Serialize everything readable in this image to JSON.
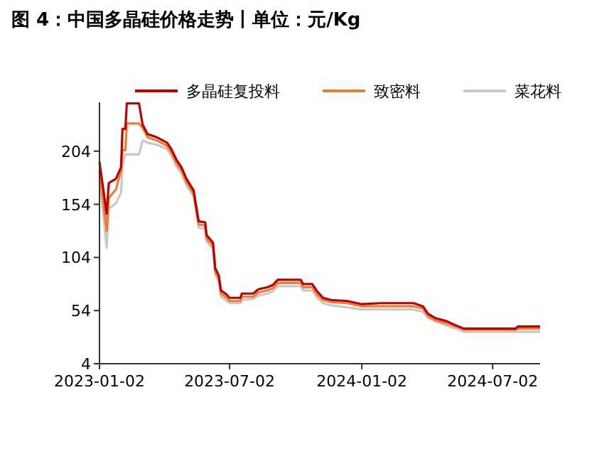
{
  "chart_data": {
    "type": "line",
    "title": "图 4：中国多晶硅价格走势丨单位：元/Kg",
    "x": [
      "2023-01-02",
      "2023-01-12",
      "2023-01-15",
      "2023-01-25",
      "2023-02-01",
      "2023-02-03",
      "2023-02-07",
      "2023-02-09",
      "2023-02-26",
      "2023-03-03",
      "2023-03-10",
      "2023-03-23",
      "2023-04-06",
      "2023-04-12",
      "2023-04-19",
      "2023-04-26",
      "2023-05-03",
      "2023-05-13",
      "2023-05-20",
      "2023-05-29",
      "2023-05-31",
      "2023-06-09",
      "2023-06-12",
      "2023-06-17",
      "2023-06-20",
      "2023-06-28",
      "2023-07-02",
      "2023-07-17",
      "2023-07-19",
      "2023-08-04",
      "2023-08-11",
      "2023-08-24",
      "2023-08-31",
      "2023-09-07",
      "2023-10-09",
      "2023-10-12",
      "2023-10-25",
      "2023-11-01",
      "2023-11-09",
      "2023-11-20",
      "2023-12-13",
      "2024-01-02",
      "2024-01-28",
      "2024-03-14",
      "2024-03-27",
      "2024-04-03",
      "2024-04-13",
      "2024-04-29",
      "2024-05-12",
      "2024-05-23",
      "2024-08-03",
      "2024-08-06",
      "2024-09-06"
    ],
    "series": [
      {
        "name": "多晶硅复投料",
        "color": "#c00000",
        "values": [
          194,
          145,
          174,
          178,
          189,
          225,
          225,
          249,
          249,
          229,
          220,
          217,
          212,
          206,
          196,
          189,
          178,
          167,
          138,
          137,
          125,
          118,
          94,
          87,
          73,
          69,
          66,
          66,
          70,
          70,
          74,
          76,
          78,
          83,
          83,
          79,
          79,
          72,
          66,
          64,
          63,
          60,
          61,
          61,
          58,
          51,
          47,
          44,
          40,
          37,
          37,
          39,
          39
        ]
      },
      {
        "name": "致密料",
        "color": "#ed7d31",
        "values": [
          186,
          129,
          160,
          168,
          186,
          205,
          205,
          230,
          230,
          226,
          217,
          214,
          209,
          203,
          193,
          186,
          175,
          164,
          135,
          134,
          122,
          115,
          91,
          84,
          70,
          66,
          63,
          63,
          67,
          67,
          71,
          73,
          75,
          80,
          80,
          76,
          76,
          69,
          64,
          62,
          61,
          58,
          58,
          58,
          56,
          49,
          45,
          42,
          39,
          36,
          36,
          37,
          37
        ]
      },
      {
        "name": "菜花料",
        "color": "#c8c8c8",
        "values": [
          180,
          113,
          150,
          155,
          165,
          190,
          201,
          201,
          201,
          214,
          212,
          210,
          206,
          200,
          190,
          183,
          172,
          161,
          132,
          131,
          119,
          112,
          88,
          81,
          67,
          63,
          61,
          61,
          64,
          65,
          68,
          70,
          72,
          77,
          77,
          73,
          73,
          66,
          61,
          59,
          57,
          55,
          55,
          55,
          53,
          47,
          44,
          40,
          37,
          34,
          34,
          34,
          34
        ]
      }
    ],
    "xlim": [
      "2023-01-02",
      "2024-09-06"
    ],
    "xticks": [
      {
        "value": "2023-01-02",
        "label": "2023-01-02"
      },
      {
        "value": "2023-07-02",
        "label": "2023-07-02"
      },
      {
        "value": "2024-01-02",
        "label": "2024-01-02"
      },
      {
        "value": "2024-07-02",
        "label": "2024-07-02"
      }
    ],
    "ylim": [
      4,
      250
    ],
    "yticks": [
      4,
      54,
      104,
      154,
      204
    ],
    "legend": "top",
    "grid": false,
    "line_style": "solid"
  }
}
